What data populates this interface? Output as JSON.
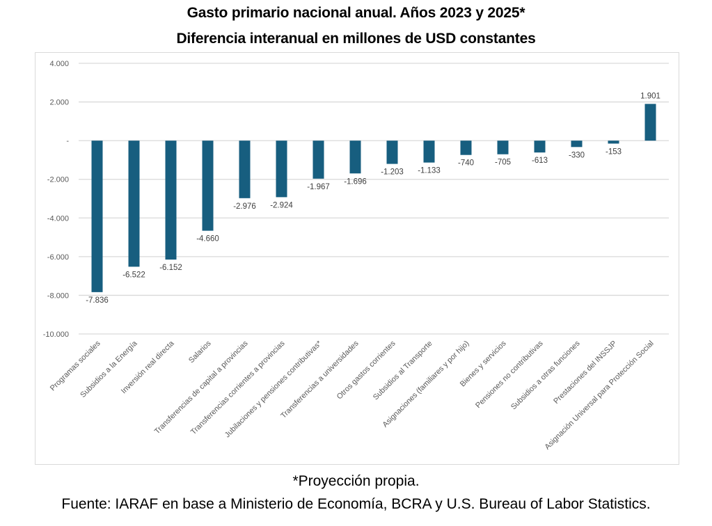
{
  "chart_data": {
    "type": "bar",
    "title": "Gasto primario nacional anual. Años 2023 y 2025*",
    "subtitle": "Diferencia interanual en millones de USD constantes",
    "xlabel": "",
    "ylabel": "",
    "ylim": [
      -10000,
      4000
    ],
    "yticks": [
      4000,
      2000,
      0,
      -2000,
      -4000,
      -6000,
      -8000,
      -10000
    ],
    "ytick_labels": [
      "4.000",
      "2.000",
      "-",
      "-2.000",
      "-4.000",
      "-6.000",
      "-8.000",
      "-10.000"
    ],
    "grid": true,
    "legend": "none",
    "bar_color": "#175e7f",
    "categories": [
      "Programas sociales",
      "Subsidios a la Energía",
      "Inversión real directa",
      "Salarios",
      "Transferencias de capital a provincias",
      "Transferencias corrientes a provincias",
      "Jubilaciones y pensiones contributivas*",
      "Transferencias a universidades",
      "Otros gastos corrientes",
      "Subsidios al Transporte",
      "Asignaciones (familiares y por hijo)",
      "Bienes y servicios",
      "Pensiones no contributivas",
      "Subsidios a otras funciones",
      "Prestaciones del INSSJP",
      "Asignación Universal para Protección Social"
    ],
    "values": [
      -7836,
      -6522,
      -6152,
      -4660,
      -2976,
      -2924,
      -1967,
      -1696,
      -1203,
      -1133,
      -740,
      -705,
      -613,
      -330,
      -153,
      1901
    ],
    "data_labels": [
      "-7.836",
      "-6.522",
      "-6.152",
      "-4.660",
      "-2.976",
      "-2.924",
      "-1.967",
      "-1.696",
      "-1.203",
      "-1.133",
      "-740",
      "-705",
      "-613",
      "-330",
      "-153",
      "1.901"
    ]
  },
  "footnote": "*Proyección propia.",
  "source": "Fuente: IARAF en base a Ministerio de Economía, BCRA y U.S. Bureau of Labor Statistics."
}
